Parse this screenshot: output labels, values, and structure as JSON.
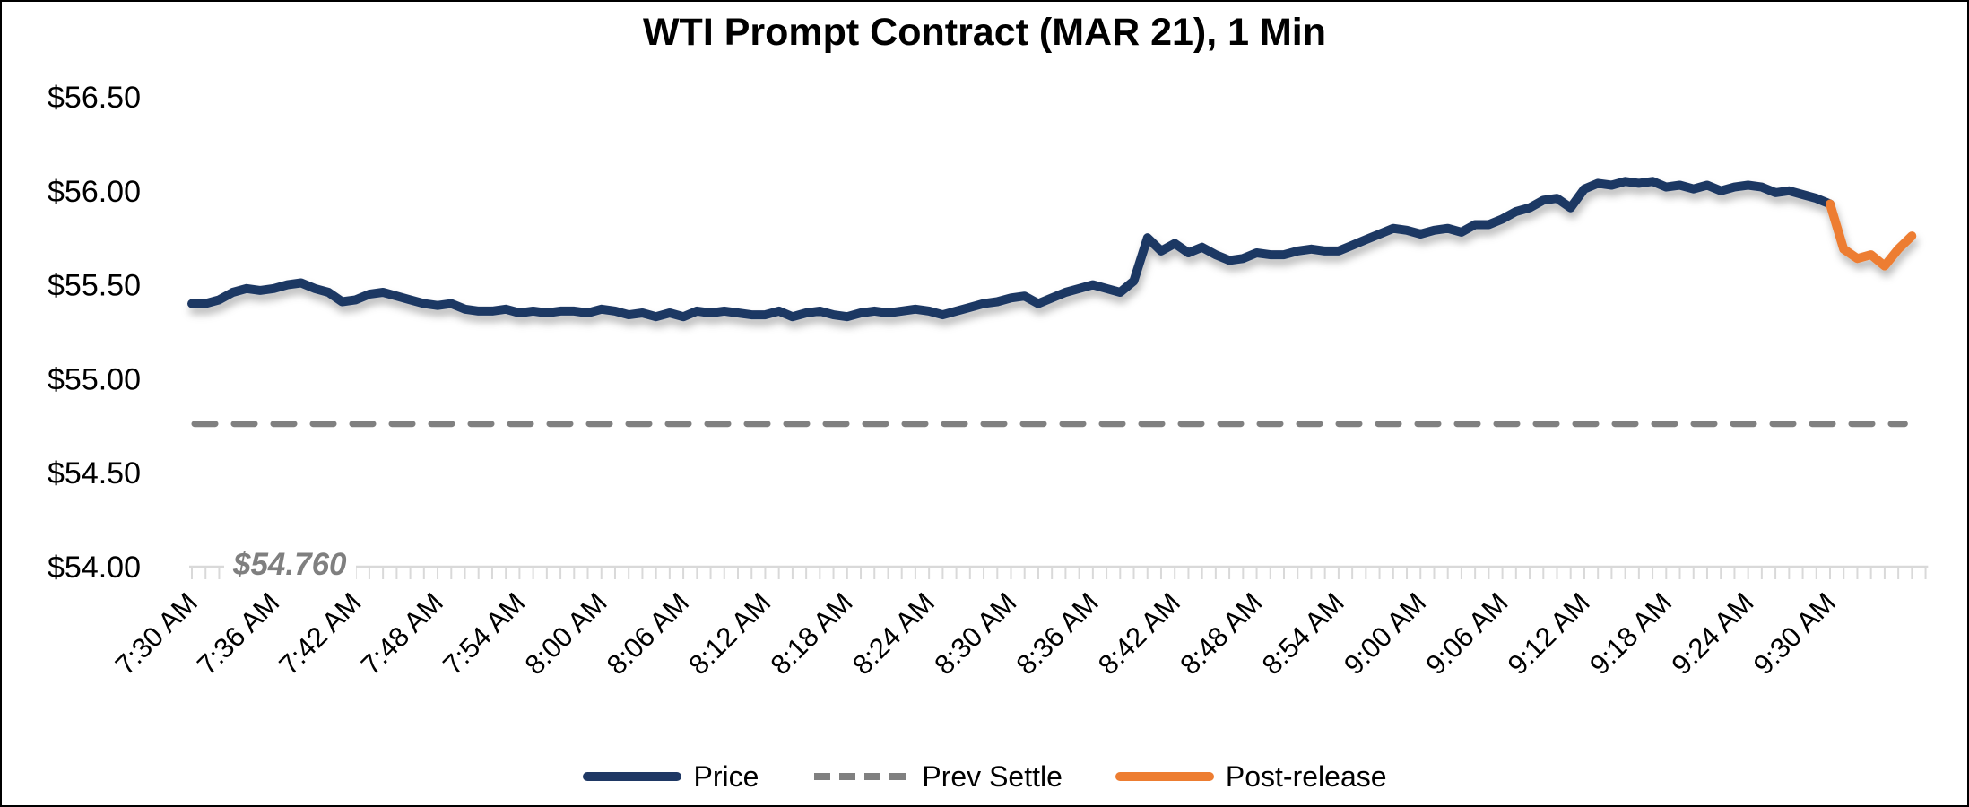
{
  "chart_data": {
    "type": "line",
    "title": "WTI Prompt Contract (MAR 21), 1 Min",
    "grid": "off",
    "x_axis": {
      "tick_labels": [
        "7:30 AM",
        "7:36 AM",
        "7:42 AM",
        "7:48 AM",
        "7:54 AM",
        "8:00 AM",
        "8:06 AM",
        "8:12 AM",
        "8:18 AM",
        "8:24 AM",
        "8:30 AM",
        "8:36 AM",
        "8:42 AM",
        "8:48 AM",
        "8:54 AM",
        "9:00 AM",
        "9:06 AM",
        "9:12 AM",
        "9:18 AM",
        "9:24 AM",
        "9:30 AM"
      ],
      "label_interval_minutes": 6,
      "minor_tick_interval_minutes": 1,
      "start_time": "7:30 AM",
      "data_end_minute_offset": 126
    },
    "y_axis": {
      "tick_labels": [
        "$54.00",
        "$54.50",
        "$55.00",
        "$55.50",
        "$56.00",
        "$56.50"
      ],
      "min": 54.0,
      "max": 56.5,
      "step": 0.5
    },
    "prev_settle": {
      "name": "Prev Settle",
      "value": 54.76,
      "annotation": "$54.760",
      "color": "#808080"
    },
    "series": [
      {
        "name": "Price",
        "color": "#1F3864",
        "start_minute_offset": 0,
        "values": [
          55.4,
          55.4,
          55.42,
          55.46,
          55.48,
          55.47,
          55.48,
          55.5,
          55.51,
          55.48,
          55.46,
          55.41,
          55.42,
          55.45,
          55.46,
          55.44,
          55.42,
          55.4,
          55.39,
          55.4,
          55.37,
          55.36,
          55.36,
          55.37,
          55.35,
          55.36,
          55.35,
          55.36,
          55.36,
          55.35,
          55.37,
          55.36,
          55.34,
          55.35,
          55.33,
          55.35,
          55.33,
          55.36,
          55.35,
          55.36,
          55.35,
          55.34,
          55.34,
          55.36,
          55.33,
          55.35,
          55.36,
          55.34,
          55.33,
          55.35,
          55.36,
          55.35,
          55.36,
          55.37,
          55.36,
          55.34,
          55.36,
          55.38,
          55.4,
          55.41,
          55.43,
          55.44,
          55.4,
          55.43,
          55.46,
          55.48,
          55.5,
          55.48,
          55.46,
          55.52,
          55.75,
          55.68,
          55.72,
          55.67,
          55.7,
          55.66,
          55.63,
          55.64,
          55.67,
          55.66,
          55.66,
          55.68,
          55.69,
          55.68,
          55.68,
          55.71,
          55.74,
          55.77,
          55.8,
          55.79,
          55.77,
          55.79,
          55.8,
          55.78,
          55.82,
          55.82,
          55.85,
          55.89,
          55.91,
          55.95,
          55.96,
          55.91,
          56.01,
          56.04,
          56.03,
          56.05,
          56.04,
          56.05,
          56.02,
          56.03,
          56.01,
          56.03,
          56.0,
          56.02,
          56.03,
          56.02,
          55.99,
          56.0,
          55.98,
          55.96,
          55.93
        ]
      },
      {
        "name": "Post-release",
        "color": "#ED7D31",
        "start_minute_offset": 120,
        "values": [
          55.93,
          55.69,
          55.64,
          55.66,
          55.6,
          55.69,
          55.76
        ]
      }
    ],
    "legend": {
      "position": "bottom",
      "entries": [
        {
          "label": "Price",
          "color": "#1F3864",
          "dashed": false
        },
        {
          "label": "Prev Settle",
          "color": "#808080",
          "dashed": true
        },
        {
          "label": "Post-release",
          "color": "#ED7D31",
          "dashed": false
        }
      ]
    },
    "axis_color": "#D9D9D9"
  }
}
